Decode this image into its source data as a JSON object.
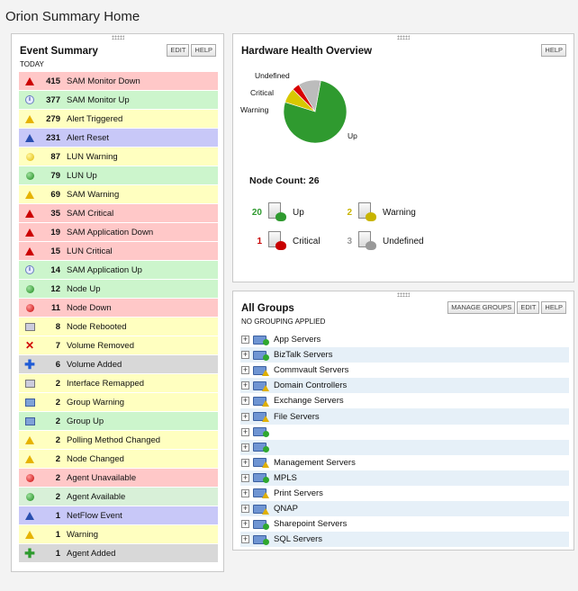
{
  "page": {
    "title": "Orion Summary Home"
  },
  "event_summary": {
    "title": "Event Summary",
    "subtitle": "TODAY",
    "edit_label": "EDIT",
    "help_label": "HELP",
    "events": [
      {
        "count": "415",
        "label": "SAM Monitor Down",
        "bg": "#ffc8c8",
        "icon": "red-warning-triangle-icon"
      },
      {
        "count": "377",
        "label": "SAM Monitor Up",
        "bg": "#ccf5cc",
        "icon": "info-icon"
      },
      {
        "count": "279",
        "label": "Alert Triggered",
        "bg": "#ffffc0",
        "icon": "yellow-warning-triangle-icon"
      },
      {
        "count": "231",
        "label": "Alert Reset",
        "bg": "#c8c8f8",
        "icon": "blue-triangle-icon"
      },
      {
        "count": "87",
        "label": "LUN Warning",
        "bg": "#ffffc0",
        "icon": "yellow-dot-icon"
      },
      {
        "count": "79",
        "label": "LUN Up",
        "bg": "#ccf5cc",
        "icon": "green-dot-icon"
      },
      {
        "count": "69",
        "label": "SAM Warning",
        "bg": "#ffffc0",
        "icon": "yellow-warning-triangle-icon"
      },
      {
        "count": "35",
        "label": "SAM Critical",
        "bg": "#ffc8c8",
        "icon": "red-warning-triangle-icon"
      },
      {
        "count": "19",
        "label": "SAM Application Down",
        "bg": "#ffc8c8",
        "icon": "red-warning-triangle-icon"
      },
      {
        "count": "15",
        "label": "LUN Critical",
        "bg": "#ffc8c8",
        "icon": "red-warning-triangle-icon"
      },
      {
        "count": "14",
        "label": "SAM Application Up",
        "bg": "#ccf5cc",
        "icon": "info-icon"
      },
      {
        "count": "12",
        "label": "Node Up",
        "bg": "#ccf5cc",
        "icon": "green-dot-icon"
      },
      {
        "count": "11",
        "label": "Node Down",
        "bg": "#ffc8c8",
        "icon": "red-dot-icon"
      },
      {
        "count": "8",
        "label": "Node Rebooted",
        "bg": "#ffffc0",
        "icon": "reboot-icon"
      },
      {
        "count": "7",
        "label": "Volume Removed",
        "bg": "#ffffc0",
        "icon": "red-x-icon"
      },
      {
        "count": "6",
        "label": "Volume Added",
        "bg": "#d8d8d8",
        "icon": "blue-plus-icon"
      },
      {
        "count": "2",
        "label": "Interface Remapped",
        "bg": "#ffffc0",
        "icon": "interface-icon"
      },
      {
        "count": "2",
        "label": "Group Warning",
        "bg": "#ffffc0",
        "icon": "group-warning-icon"
      },
      {
        "count": "2",
        "label": "Group Up",
        "bg": "#ccf5cc",
        "icon": "group-up-icon"
      },
      {
        "count": "2",
        "label": "Polling Method Changed",
        "bg": "#ffffc0",
        "icon": "yellow-warning-triangle-icon"
      },
      {
        "count": "2",
        "label": "Node Changed",
        "bg": "#ffffc0",
        "icon": "yellow-warning-triangle-icon"
      },
      {
        "count": "2",
        "label": "Agent Unavailable",
        "bg": "#ffc8c8",
        "icon": "red-dot-icon"
      },
      {
        "count": "2",
        "label": "Agent Available",
        "bg": "#d8f0d8",
        "icon": "green-dot-icon"
      },
      {
        "count": "1",
        "label": "NetFlow Event",
        "bg": "#c8c8f8",
        "icon": "blue-triangle-icon"
      },
      {
        "count": "1",
        "label": "Warning",
        "bg": "#ffffc0",
        "icon": "yellow-warning-triangle-icon"
      },
      {
        "count": "1",
        "label": "Agent Added",
        "bg": "#d8d8d8",
        "icon": "green-plus-icon"
      }
    ]
  },
  "hardware_health": {
    "title": "Hardware Health Overview",
    "help_label": "HELP",
    "pie_labels": {
      "undefined": "Undefined",
      "critical": "Critical",
      "warning": "Warning",
      "up": "Up"
    },
    "chart_data": {
      "type": "pie",
      "categories": [
        "Up",
        "Warning",
        "Critical",
        "Undefined"
      ],
      "values": [
        20,
        2,
        1,
        3
      ],
      "colors": [
        "#2f9a2f",
        "#d8c800",
        "#d80000",
        "#bcbcbc"
      ]
    },
    "node_count_label": "Node Count: 26",
    "statuses": [
      {
        "count": "20",
        "label": "Up",
        "color": "#2f9a2f",
        "icon": "server-up-icon"
      },
      {
        "count": "2",
        "label": "Warning",
        "color": "#c8b400",
        "icon": "server-warning-icon"
      },
      {
        "count": "1",
        "label": "Critical",
        "color": "#c80000",
        "icon": "server-critical-icon"
      },
      {
        "count": "3",
        "label": "Undefined",
        "color": "#999999",
        "icon": "server-undefined-icon"
      }
    ]
  },
  "all_groups": {
    "title": "All Groups",
    "subtitle": "NO GROUPING APPLIED",
    "manage_label": "MANAGE GROUPS",
    "edit_label": "EDIT",
    "help_label": "HELP",
    "groups": [
      {
        "name": "App Servers",
        "status": "up"
      },
      {
        "name": "BizTalk Servers",
        "status": "up"
      },
      {
        "name": "Commvault Servers",
        "status": "warn"
      },
      {
        "name": "Domain Controllers",
        "status": "warn"
      },
      {
        "name": "Exchange Servers",
        "status": "warn"
      },
      {
        "name": "File Servers",
        "status": "warn"
      },
      {
        "name": "",
        "status": "up"
      },
      {
        "name": "",
        "status": "up"
      },
      {
        "name": "Management Servers",
        "status": "warn"
      },
      {
        "name": "MPLS",
        "status": "up"
      },
      {
        "name": "Print Servers",
        "status": "warn"
      },
      {
        "name": "QNAP",
        "status": "warn"
      },
      {
        "name": "Sharepoint Servers",
        "status": "up"
      },
      {
        "name": "SQL Servers",
        "status": "up"
      }
    ]
  }
}
